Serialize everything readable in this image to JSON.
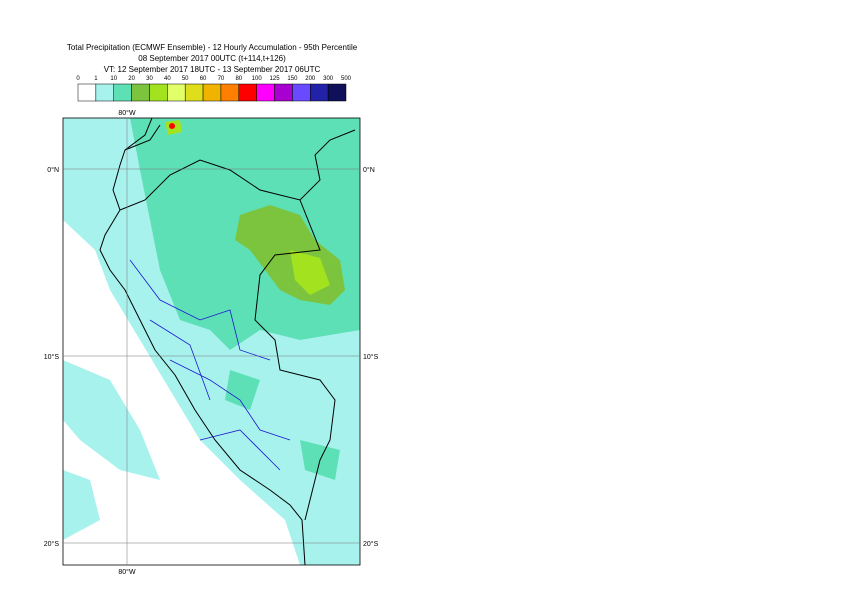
{
  "header": {
    "title": [
      "Total Precipitation (ECMWF Ensemble) - 12 Hourly Accumulation - 95th Percentile",
      "08 September 2017 00UTC (t+114,t+126)",
      "VT: 12 September 2017 18UTC - 13 September 2017 06UTC"
    ]
  },
  "legend": {
    "labels": [
      0,
      1,
      10,
      20,
      30,
      40,
      50,
      60,
      70,
      80,
      100,
      125,
      150,
      200,
      300,
      500
    ],
    "colors": [
      "#ffffff",
      "#a8f2ee",
      "#5ee0b6",
      "#7cc43e",
      "#a2e21e",
      "#e2ff6a",
      "#dede1c",
      "#f0b400",
      "#ff8000",
      "#ff0000",
      "#ff00ff",
      "#a800d0",
      "#6a4aff",
      "#2222a8",
      "#10105a"
    ]
  },
  "map": {
    "lon_label": "80°W",
    "lat_labels": [
      "0°N",
      "10°S",
      "20°S"
    ]
  }
}
